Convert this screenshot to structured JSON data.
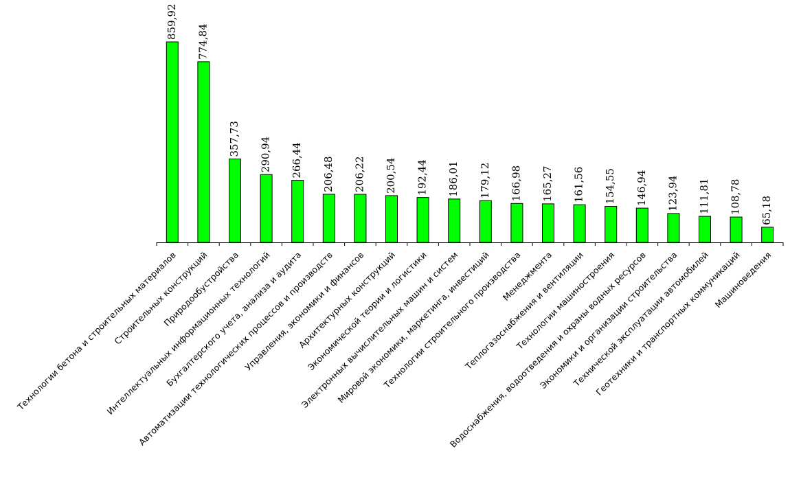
{
  "chart_data": {
    "type": "bar",
    "categories": [
      "Технологии бетона и строительных  материалов",
      "Строительных  конструкций",
      "Природообустройства",
      "Интеллектуальных  информационных  технологий",
      "Бухгалтерского учета, анализа и аудита",
      "Автоматизации технологических процессов и производств",
      "Управления, экономики и финансов",
      "Архитектурных  конструкций",
      "Экономической теории и логистики",
      "Электронных  вычислительных  машин и систем",
      "Мировой экономики,  маркетинга, инвестиций",
      "Технологии строительного  производства",
      "Менеджмента",
      "Теплогазоснабжения и вентиляции",
      "Технологии машиностроения",
      "Водоснабжения, водоотведения и охраны водных ресурсов",
      "Экономики и организации  строительства",
      "Технической эксплуатации  автомобилей",
      "Геотехники и транспортных  коммуникаций",
      "Машиноведения"
    ],
    "values": [
      859.92,
      774.84,
      357.73,
      290.94,
      266.44,
      206.48,
      206.22,
      200.54,
      192.44,
      186.01,
      179.12,
      166.98,
      165.27,
      161.56,
      154.55,
      146.94,
      123.94,
      111.81,
      108.78,
      65.18
    ],
    "value_labels": [
      "859,92",
      "774,84",
      "357,73",
      "290,94",
      "266,44",
      "206,48",
      "206,22",
      "200,54",
      "192,44",
      "186,01",
      "179,12",
      "166,98",
      "165,27",
      "161,56",
      "154,55",
      "146,94",
      "123,94",
      "111,81",
      "108,78",
      "65,18"
    ],
    "bar_color": "#00ff00",
    "ylim": [
      0,
      859.92
    ],
    "grid": false,
    "legend": "none"
  }
}
